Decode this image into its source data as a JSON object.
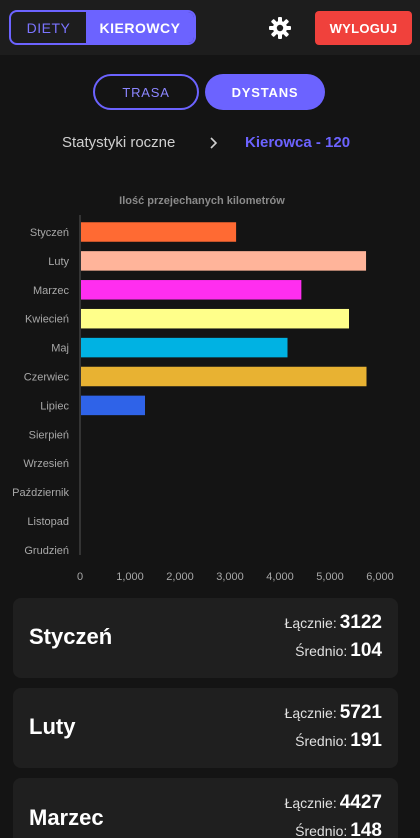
{
  "header": {
    "tabs": [
      {
        "label": "DIETY",
        "active": false
      },
      {
        "label": "KIEROWCY",
        "active": true
      }
    ],
    "settings_icon": "gear-icon",
    "logout_label": "WYLOGUJ",
    "accent": "#6c63ff",
    "danger": "#f0413c"
  },
  "mode_tabs": [
    {
      "label": "TRASA",
      "active": false
    },
    {
      "label": "DYSTANS",
      "active": true
    }
  ],
  "breadcrumb": {
    "root": "Statystyki roczne",
    "separator_icon": "chevron-right-icon",
    "current": "Kierowca - 120"
  },
  "chart_data": {
    "type": "bar",
    "orientation": "horizontal",
    "title": "Ilość przejechanych kilometrów",
    "categories": [
      "Styczeń",
      "Luty",
      "Marzec",
      "Kwiecień",
      "Maj",
      "Czerwiec",
      "Lipiec",
      "Sierpień",
      "Wrzesień",
      "Październik",
      "Listopad",
      "Grudzień"
    ],
    "values": [
      3122,
      5721,
      4427,
      5380,
      4150,
      5730,
      1300,
      0,
      0,
      0,
      0,
      0
    ],
    "colors": [
      "#ff6a33",
      "#ffb49a",
      "#ff2ef0",
      "#ffff8a",
      "#00b2e3",
      "#e8b232",
      "#2f63e8",
      "#888888",
      "#888888",
      "#888888",
      "#888888",
      "#888888"
    ],
    "xlim": [
      0,
      6000
    ],
    "xticks": [
      0,
      1000,
      2000,
      3000,
      4000,
      5000,
      6000
    ],
    "xtick_labels": [
      "0",
      "1,000",
      "2,000",
      "3,000",
      "4,000",
      "5,000",
      "6,000"
    ],
    "grid": false,
    "legend": "none"
  },
  "stats_labels": {
    "total": "Łącznie:",
    "average": "Średnio:"
  },
  "month_cards": [
    {
      "month": "Styczeń",
      "total": "3122",
      "average": "104"
    },
    {
      "month": "Luty",
      "total": "5721",
      "average": "191"
    },
    {
      "month": "Marzec",
      "total": "4427",
      "average": "148"
    }
  ]
}
